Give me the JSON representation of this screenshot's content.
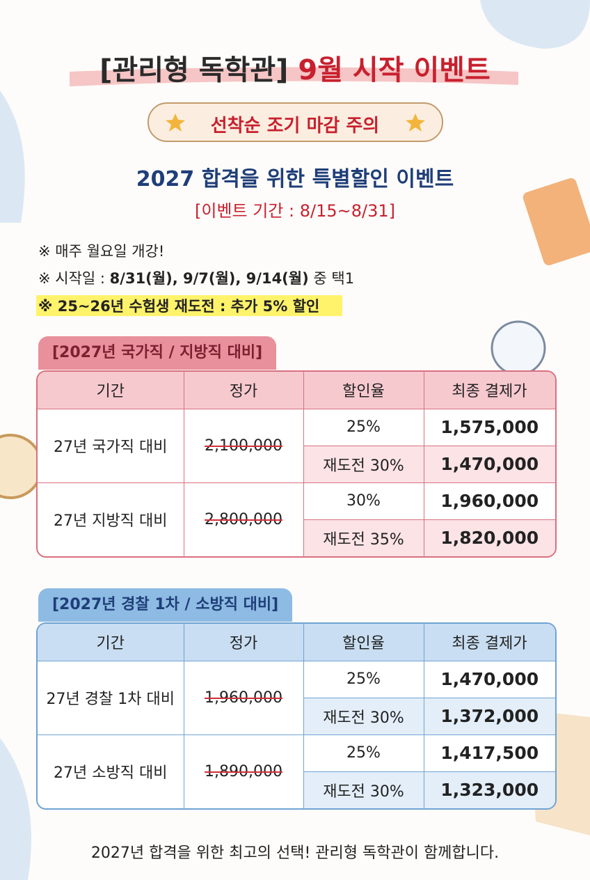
{
  "header": {
    "title_bracket": "[관리형 독학관]",
    "title_main": "9월 시작 이벤트",
    "badge": "선착순 조기 마감 주의",
    "subtitle": "2027 합격을 위한 특별할인 이벤트",
    "period": "[이벤트 기간 : 8/15~8/31]"
  },
  "notes": {
    "line1": "※ 매주 월요일 개강!",
    "line2_prefix": "※ 시작일 : ",
    "line2_bold": "8/31(월), 9/7(월), 9/14(월)",
    "line2_suffix": " 중 택1",
    "line3": "※ 25~26년 수험생 재도전 : 추가 5% 할인"
  },
  "tables": [
    {
      "tab": "[2027년 국가직 / 지방직 대비]",
      "columns": [
        "기간",
        "정가",
        "할인율",
        "최종 결제가"
      ],
      "groups": [
        {
          "name": "27년 국가직 대비",
          "list_price": "2,100,000",
          "rows": [
            {
              "rate": "25%",
              "final": "1,575,000"
            },
            {
              "rate": "재도전 30%",
              "final": "1,470,000"
            }
          ]
        },
        {
          "name": "27년 지방직 대비",
          "list_price": "2,800,000",
          "rows": [
            {
              "rate": "30%",
              "final": "1,960,000"
            },
            {
              "rate": "재도전 35%",
              "final": "1,820,000"
            }
          ]
        }
      ]
    },
    {
      "tab": "[2027년 경찰 1차 / 소방직 대비]",
      "columns": [
        "기간",
        "정가",
        "할인율",
        "최종 결제가"
      ],
      "groups": [
        {
          "name": "27년 경찰 1차 대비",
          "list_price": "1,960,000",
          "rows": [
            {
              "rate": "25%",
              "final": "1,470,000"
            },
            {
              "rate": "재도전 30%",
              "final": "1,372,000"
            }
          ]
        },
        {
          "name": "27년 소방직 대비",
          "list_price": "1,890,000",
          "rows": [
            {
              "rate": "25%",
              "final": "1,417,500"
            },
            {
              "rate": "재도전 30%",
              "final": "1,323,000"
            }
          ]
        }
      ]
    }
  ],
  "footer": "2027년 합격을 위한 최고의 선택! 관리형 독학관이 함께합니다."
}
